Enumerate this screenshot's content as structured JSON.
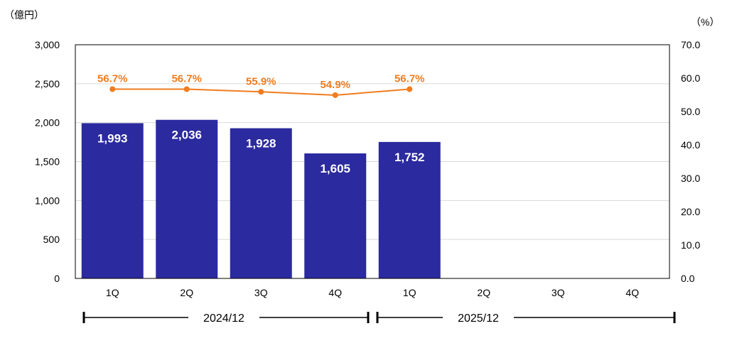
{
  "chart_data": {
    "type": "bar",
    "categories": [
      "1Q",
      "2Q",
      "3Q",
      "4Q",
      "1Q",
      "2Q",
      "3Q",
      "4Q"
    ],
    "groups": [
      {
        "label": "2024/12",
        "categories": [
          "1Q",
          "2Q",
          "3Q",
          "4Q"
        ]
      },
      {
        "label": "2025/12",
        "categories": [
          "1Q",
          "2Q",
          "3Q",
          "4Q"
        ]
      }
    ],
    "series": [
      {
        "type": "bar",
        "axis": "left",
        "values": [
          1993,
          2036,
          1928,
          1605,
          1752,
          null,
          null,
          null
        ],
        "labels": [
          "1,993",
          "2,036",
          "1,928",
          "1,605",
          "1,752",
          null,
          null,
          null
        ],
        "color": "#2b2a9e"
      },
      {
        "type": "line",
        "axis": "right",
        "values": [
          56.7,
          56.7,
          55.9,
          54.9,
          56.7,
          null,
          null,
          null
        ],
        "labels": [
          "56.7%",
          "56.7%",
          "55.9%",
          "54.9%",
          "56.7%",
          null,
          null,
          null
        ],
        "color": "#f07c1e"
      }
    ],
    "y_left": {
      "unit": "（億円）",
      "lim": [
        0,
        3000
      ],
      "ticks": [
        "0",
        "500",
        "1,000",
        "1,500",
        "2,000",
        "2,500",
        "3,000"
      ]
    },
    "y_right": {
      "unit": "（%）",
      "lim": [
        0,
        70
      ],
      "ticks": [
        "0.0",
        "10.0",
        "20.0",
        "30.0",
        "40.0",
        "50.0",
        "60.0",
        "70.0"
      ]
    },
    "grid": true,
    "grid_color": "#d9d9d9"
  }
}
